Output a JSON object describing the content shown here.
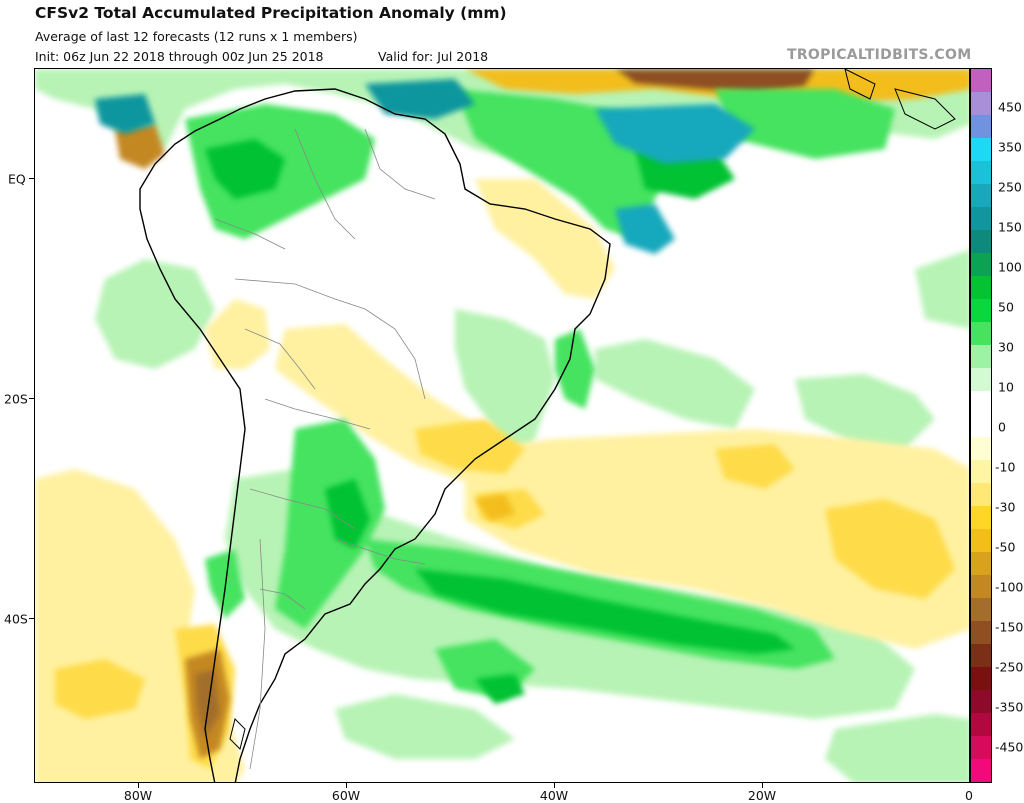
{
  "header": {
    "title": "CFSv2 Total Accumulated Precipitation Anomaly (mm)",
    "subtitle": "Average of last 12 forecasts (12 runs x 1 members)",
    "init": "Init: 06z Jun 22 2018 through 00z Jun 25 2018",
    "valid": "Valid for: Jul 2018",
    "brand": "TROPICALTIDBITS.COM"
  },
  "map": {
    "region": "South America and South Atlantic",
    "lat_labels": [
      "EQ",
      "20S",
      "40S"
    ],
    "lon_labels": [
      "80W",
      "60W",
      "40W",
      "20W",
      "0"
    ]
  },
  "legend": {
    "units": "mm",
    "labels": [
      "450",
      "350",
      "250",
      "150",
      "100",
      "50",
      "30",
      "10",
      "0",
      "-10",
      "-30",
      "-50",
      "-100",
      "-150",
      "-250",
      "-350",
      "-450"
    ],
    "colors": [
      "#c35fbf",
      "#a98fd8",
      "#6f93e0",
      "#1fd8f6",
      "#1cc0d9",
      "#17a8bc",
      "#10969e",
      "#0c8a7c",
      "#09a353",
      "#05c231",
      "#0bd63b",
      "#45e35e",
      "#9ef2a3",
      "#d3fad3",
      "#ffffff",
      "#ffffff",
      "#fffdd2",
      "#fff5a3",
      "#ffe873",
      "#fed627",
      "#f3bd1c",
      "#d9a21b",
      "#c48820",
      "#a36e2a",
      "#8f4f22",
      "#7c2f17",
      "#7b1010",
      "#8f0a2a",
      "#b0083f",
      "#d60b5c",
      "#f00a7a"
    ]
  },
  "chart_data": {
    "type": "heatmap",
    "title": "CFSv2 Total Accumulated Precipitation Anomaly (mm)",
    "variable": "precipitation anomaly",
    "units": "mm",
    "x_axis": {
      "labels": [
        "80W",
        "60W",
        "40W",
        "20W",
        "0"
      ],
      "values": [
        -80,
        -60,
        -40,
        -20,
        0
      ],
      "range": [
        -90,
        0
      ]
    },
    "y_axis": {
      "labels": [
        "EQ",
        "20S",
        "40S"
      ],
      "values": [
        0,
        -20,
        -40
      ],
      "range": [
        -55,
        10
      ]
    },
    "colorbar_ticks": [
      450,
      350,
      250,
      150,
      100,
      50,
      30,
      10,
      0,
      -10,
      -30,
      -50,
      -100,
      -150,
      -250,
      -350,
      -450
    ],
    "colorbar_range": [
      -500,
      500
    ]
  }
}
